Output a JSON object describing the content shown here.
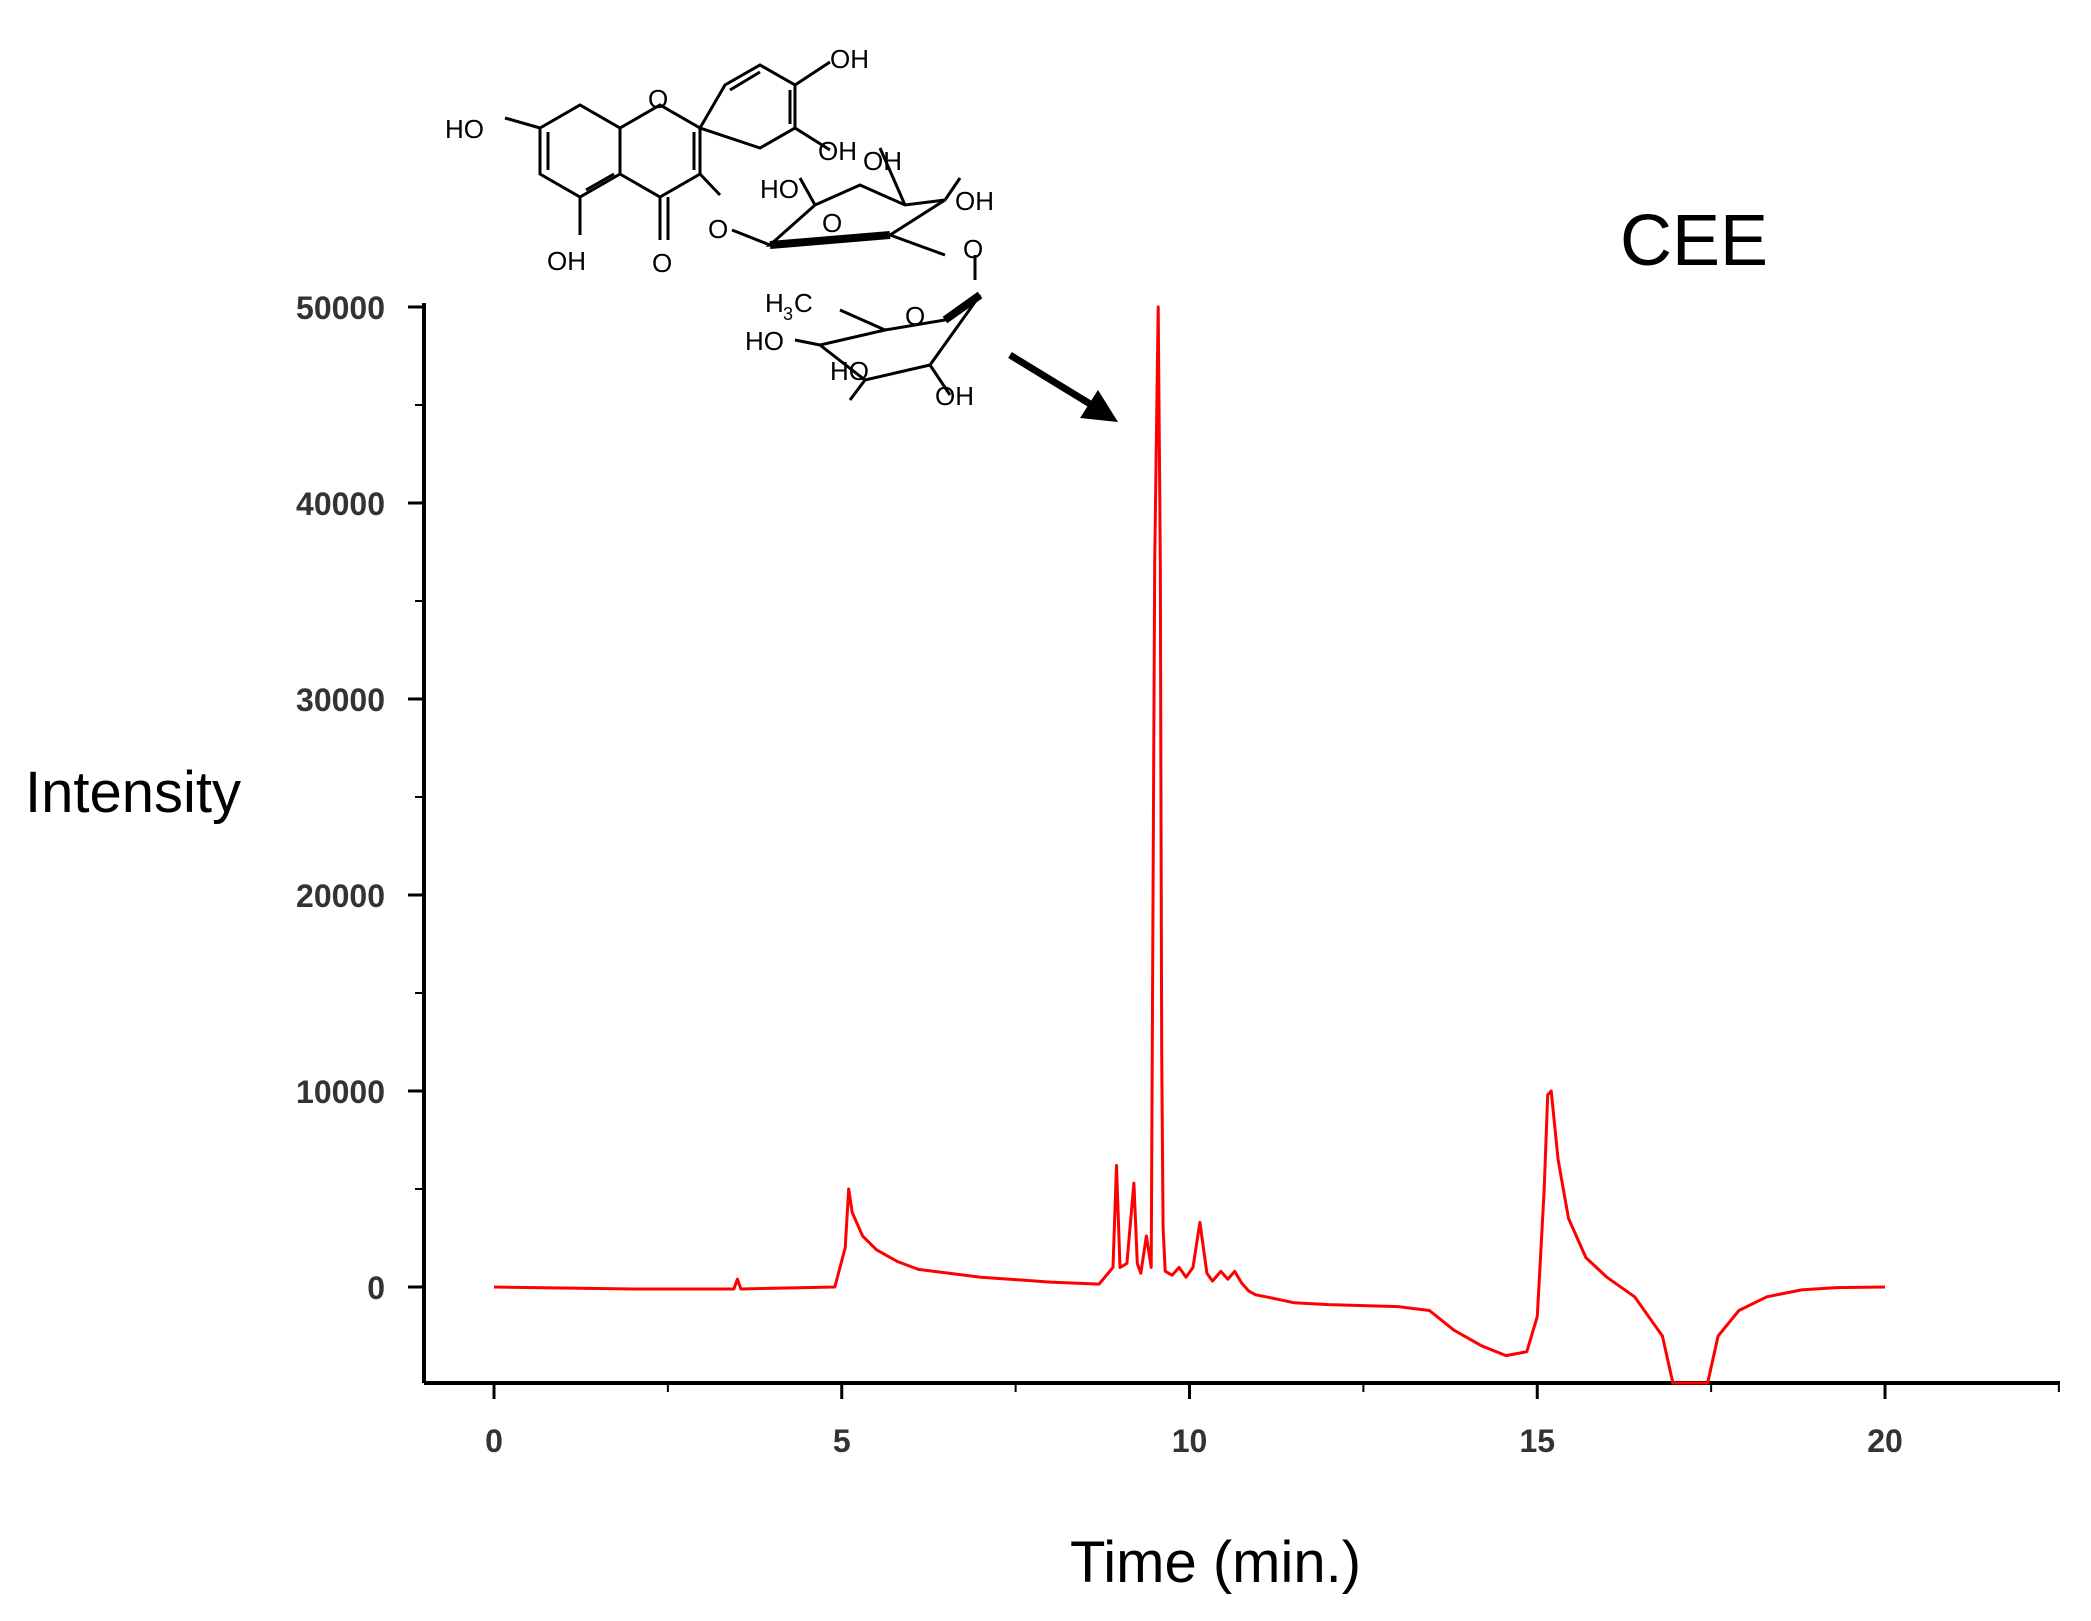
{
  "chart_data": {
    "type": "line",
    "title": "CEE",
    "xlabel": "Time (min.)",
    "ylabel": "Intensity",
    "xlim": [
      -1,
      22.5
    ],
    "ylim": [
      -5000,
      50000
    ],
    "xticks": [
      0,
      5,
      10,
      15,
      20
    ],
    "yticks": [
      0,
      10000,
      20000,
      30000,
      40000,
      50000
    ],
    "grid": false,
    "line_color": "#ff0000",
    "series": [
      {
        "x": [
          0,
          2,
          3.4,
          3.5,
          3.6,
          4,
          5,
          5.05,
          5.1,
          5.15,
          5.25,
          5.4,
          5.6,
          5.8,
          6,
          7,
          8,
          8.5,
          8.8,
          8.9,
          8.95,
          9.0,
          9.05,
          9.1,
          9.15,
          9.2,
          9.25,
          9.3,
          9.35,
          9.4,
          9.45,
          9.5,
          9.55,
          9.58,
          9.6,
          9.62,
          9.65,
          9.68,
          9.7,
          9.75,
          9.8,
          9.9,
          10.0,
          10.1,
          10.2,
          10.25,
          10.35,
          10.5,
          10.6,
          10.7,
          10.8,
          10.9,
          11.0,
          11.1,
          11.5,
          12,
          13,
          13.4,
          13.8,
          14.2,
          14.6,
          14.9,
          15.0,
          15.1,
          15.2,
          15.3,
          15.4,
          15.6,
          16.0,
          16.5,
          16.9,
          17.0,
          17.4,
          17.5,
          17.8,
          18.2,
          18.6,
          19.0,
          19.5,
          20
        ],
        "y": [
          0,
          -100,
          -100,
          300,
          -100,
          0,
          0,
          1500,
          5000,
          3600,
          2400,
          2000,
          1600,
          1300,
          900,
          500,
          300,
          200,
          200,
          6200,
          1000,
          400,
          900,
          5300,
          1000,
          500,
          2500,
          700,
          1500,
          800,
          37000,
          50000,
          37000,
          12000,
          4000,
          800,
          200,
          1000,
          300,
          3300,
          600,
          200,
          700,
          300,
          -500,
          -600,
          -800,
          -900,
          -1000,
          -1000,
          -2000,
          -2500,
          -3000,
          -3300,
          -2800,
          4000,
          10000,
          6000,
          2000,
          500,
          100,
          -2000,
          -5000,
          -5000,
          -4000,
          -2500,
          -1500,
          -700,
          -200,
          0,
          0,
          0,
          0,
          0,
          0,
          0,
          0,
          0,
          0,
          0
        ],
        "x_dense": [
          0,
          2.0,
          3.45,
          3.5,
          3.55,
          4.9,
          5.05,
          5.1,
          5.15,
          5.3,
          5.5,
          5.8,
          6.1,
          7.0,
          8.0,
          8.7,
          8.9,
          8.95,
          9.0,
          9.1,
          9.2,
          9.25,
          9.3,
          9.38,
          9.45,
          9.5,
          9.55,
          9.58,
          9.6,
          9.62,
          9.65,
          9.75,
          9.85,
          9.95,
          10.05,
          10.15,
          10.25,
          10.33,
          10.45,
          10.55,
          10.65,
          10.75,
          10.85,
          10.95,
          11.1,
          11.5,
          12.0,
          13.0,
          13.45,
          13.8,
          14.2,
          14.55,
          14.85,
          15.0,
          15.1,
          15.15,
          15.2,
          15.3,
          15.45,
          15.7,
          16.0,
          16.4,
          16.8,
          16.95,
          17.45,
          17.6,
          17.9,
          18.3,
          18.8,
          19.3,
          20.0
        ],
        "y_dense": [
          0,
          -100,
          -100,
          400,
          -100,
          0,
          2000,
          5000,
          3800,
          2600,
          1900,
          1300,
          900,
          500,
          250,
          150,
          1000,
          6200,
          1000,
          1200,
          5300,
          1200,
          700,
          2600,
          1000,
          37000,
          50000,
          37000,
          12000,
          3000,
          800,
          600,
          1000,
          500,
          1000,
          3300,
          700,
          300,
          800,
          400,
          800,
          200,
          -200,
          -400,
          -500,
          -800,
          -900,
          -1000,
          -1200,
          -2200,
          -3000,
          -3500,
          -3300,
          -1500,
          5000,
          9800,
          10000,
          6500,
          3500,
          1500,
          500,
          -500,
          -2500,
          -5000,
          -5000,
          -2500,
          -1200,
          -500,
          -150,
          -30,
          0
        ]
      }
    ],
    "annotations": {
      "structure_labels": [
        "OH",
        "HO",
        "OH",
        "OH",
        "HO",
        "OH",
        "OH",
        "OH",
        "O",
        "O",
        "O",
        "O",
        "O",
        "O",
        "HO",
        "HO",
        "OH",
        "H3C"
      ],
      "arrow": "points to main peak"
    }
  }
}
